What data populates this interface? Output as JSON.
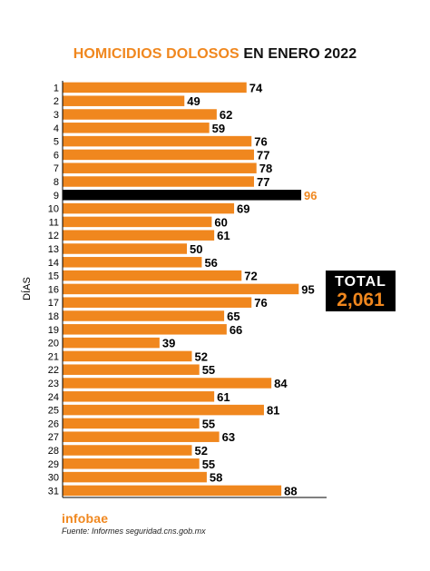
{
  "title": {
    "highlight": "HOMICIDIOS DOLOSOS",
    "rest": "EN ENERO 2022"
  },
  "total": {
    "label": "TOTAL",
    "value": "2,061"
  },
  "brand": "infobae",
  "source": "Fuente: Informes seguridad.cns.gob.mx",
  "colors": {
    "bar": "#f0871e",
    "highlight_bar": "#000000",
    "highlight_label": "#f0871e",
    "axis": "#000000"
  },
  "chart_data": {
    "type": "bar",
    "orientation": "horizontal",
    "ylabel": "DÍAS",
    "categories": [
      "1",
      "2",
      "3",
      "4",
      "5",
      "6",
      "7",
      "8",
      "9",
      "10",
      "11",
      "12",
      "13",
      "14",
      "15",
      "16",
      "17",
      "18",
      "19",
      "20",
      "21",
      "22",
      "23",
      "24",
      "25",
      "26",
      "27",
      "28",
      "29",
      "30",
      "31"
    ],
    "values": [
      74,
      49,
      62,
      59,
      76,
      77,
      78,
      77,
      96,
      69,
      60,
      61,
      50,
      56,
      72,
      95,
      76,
      65,
      66,
      39,
      52,
      55,
      84,
      61,
      81,
      55,
      63,
      52,
      55,
      58,
      88
    ],
    "highlight_category": "9",
    "xlim": [
      0,
      100
    ],
    "grid": false
  }
}
